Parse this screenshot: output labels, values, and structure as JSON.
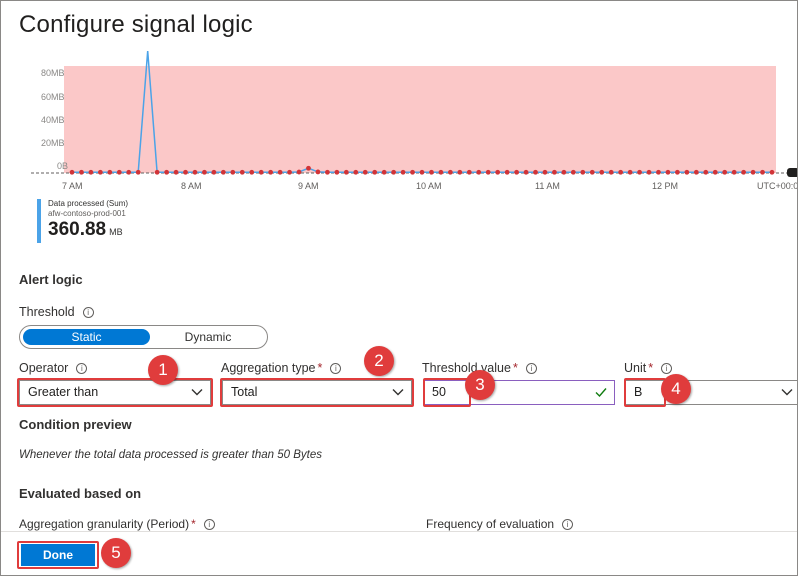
{
  "title": "Configure signal logic",
  "chart_data": {
    "type": "line",
    "y_tick_labels": [
      "80MB",
      "60MB",
      "40MB",
      "20MB",
      "0B"
    ],
    "x_tick_labels": [
      "7 AM",
      "8 AM",
      "9 AM",
      "10 AM",
      "11 AM",
      "12 PM",
      "UTC+00:0"
    ],
    "ylim": [
      0,
      90
    ],
    "threshold_area_color": "#fbc8c8",
    "line_color": "#4ba3e8",
    "point_color": "#d13438",
    "series": [
      {
        "values": [
          0.6,
          0.6,
          0.6,
          0.6,
          0.6,
          0.6,
          0.6,
          0.6,
          120,
          0.6,
          0.6,
          0.6,
          0.6,
          0.6,
          0.6,
          0.6,
          0.6,
          0.6,
          0.6,
          0.6,
          0.6,
          0.6,
          0.6,
          0.6,
          0.8,
          4,
          0.9,
          0.6,
          0.6,
          0.6,
          0.6,
          0.6,
          0.6,
          0.6,
          0.6,
          0.6,
          0.6,
          0.6,
          0.6,
          0.6,
          0.6,
          0.6,
          0.6,
          0.6,
          0.6,
          0.6,
          0.6,
          0.6,
          0.6,
          0.6,
          0.6,
          0.6,
          0.6,
          0.6,
          0.6,
          0.6,
          0.6,
          0.6,
          0.6,
          0.6,
          0.6,
          0.6,
          0.6,
          0.6,
          0.6,
          0.6,
          0.6,
          0.6,
          0.6,
          0.6,
          0.6,
          0.6,
          0.6,
          0.6,
          0.6
        ]
      }
    ]
  },
  "legend": {
    "metric": "Data processed (Sum)",
    "resource": "afw-contoso-prod-001",
    "value": "360.88",
    "unit": "MB"
  },
  "alert_logic": {
    "heading": "Alert logic",
    "threshold_label": "Threshold",
    "threshold_options": [
      "Static",
      "Dynamic"
    ],
    "operator_label": "Operator",
    "operator_value": "Greater than",
    "aggregation_label": "Aggregation type",
    "aggregation_value": "Total",
    "threshold_value_label": "Threshold value",
    "threshold_value": "50",
    "unit_label": "Unit",
    "unit_value": "B",
    "required_mark": "*"
  },
  "condition_preview": {
    "heading": "Condition preview",
    "text": "Whenever the total data processed is greater than 50 Bytes"
  },
  "evaluated": {
    "heading": "Evaluated based on",
    "granularity_label": "Aggregation granularity (Period)",
    "frequency_label": "Frequency of evaluation"
  },
  "badges": [
    "1",
    "2",
    "3",
    "4",
    "5"
  ],
  "done_label": "Done",
  "info_glyph": "i",
  "accent_color": "#0078d4",
  "highlight_color": "#e03c3c"
}
